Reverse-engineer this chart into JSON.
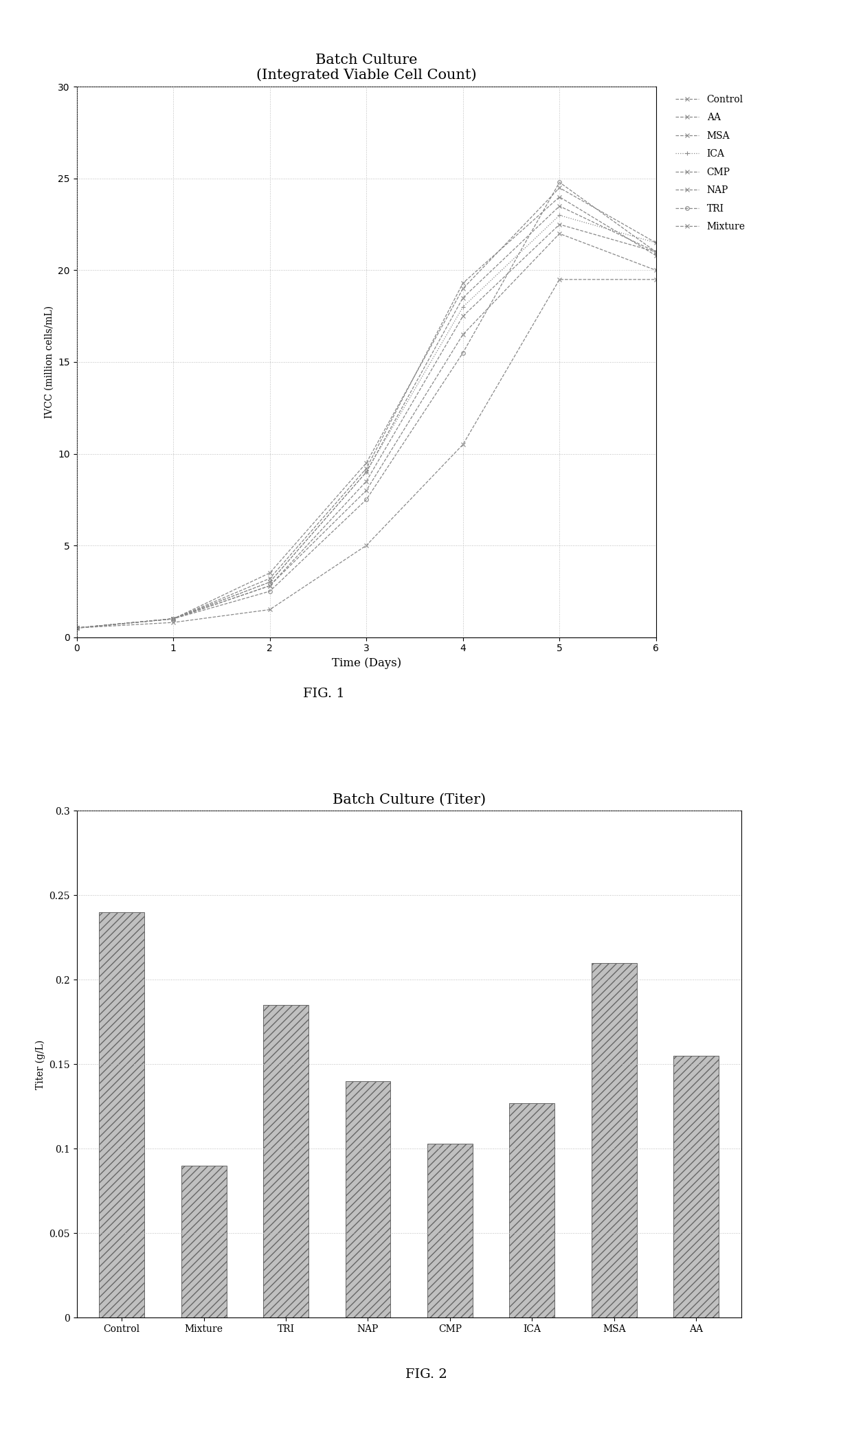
{
  "fig1_title": "Batch Culture\n(Integrated Viable Cell Count)",
  "fig1_xlabel": "Time (Days)",
  "fig1_ylabel": "IVCC (million cells/mL)",
  "fig1_ylim": [
    0,
    30
  ],
  "fig1_xlim": [
    0,
    6
  ],
  "fig1_yticks": [
    0,
    5,
    10,
    15,
    20,
    25,
    30
  ],
  "fig1_xticks": [
    0,
    1,
    2,
    3,
    4,
    5,
    6
  ],
  "fig1_label": "FIG. 1",
  "fig2_title": "Batch Culture (Titer)",
  "fig2_xlabel": "",
  "fig2_ylabel": "Titer (g/L)",
  "fig2_ylim": [
    0,
    0.3
  ],
  "fig2_yticks": [
    0,
    0.05,
    0.1,
    0.15,
    0.2,
    0.25,
    0.3
  ],
  "fig2_categories": [
    "Control",
    "Mixture",
    "TRI",
    "NAP",
    "CMP",
    "ICA",
    "MSA",
    "AA"
  ],
  "fig2_values": [
    0.24,
    0.09,
    0.185,
    0.14,
    0.103,
    0.127,
    0.21,
    0.155
  ],
  "fig2_label": "FIG. 2",
  "line_color": "#888888",
  "background_color": "#ffffff",
  "grid_color": "#bbbbbb"
}
